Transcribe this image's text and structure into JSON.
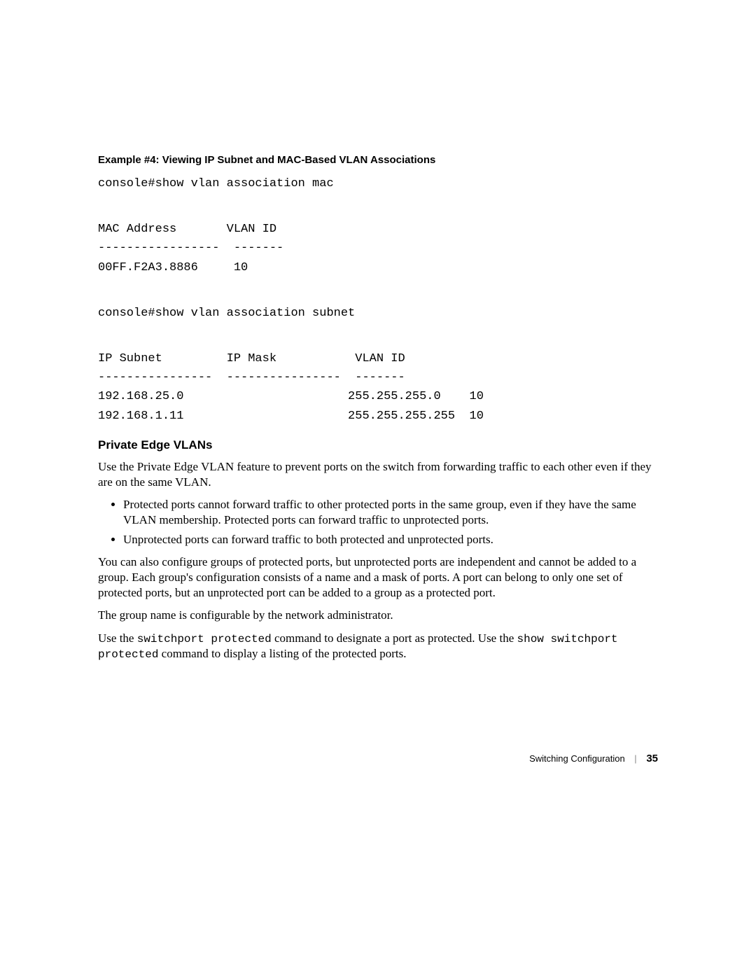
{
  "example": {
    "heading": "Example #4: Viewing IP Subnet and MAC-Based VLAN Associations",
    "cmd1": "console#show vlan association mac",
    "mac_table": {
      "header": "MAC Address       VLAN ID",
      "divider": "-----------------  -------",
      "row1": "00FF.F2A3.8886     10"
    },
    "cmd2": "console#show vlan association subnet",
    "subnet_table": {
      "header": "IP Subnet         IP Mask           VLAN ID",
      "divider": "----------------  ----------------  -------",
      "row1": "192.168.25.0                       255.255.255.0    10",
      "row2": "192.168.1.11                       255.255.255.255  10"
    }
  },
  "section": {
    "heading": "Private Edge VLANs",
    "p1": "Use the Private Edge VLAN feature to prevent ports on the switch from forwarding traffic to each other even if they are on the same VLAN.",
    "bullet1": "Protected ports cannot forward traffic to other protected ports in the same group, even if they have the same VLAN membership. Protected ports can forward traffic to unprotected ports.",
    "bullet2": "Unprotected ports can forward traffic to both protected and unprotected ports.",
    "p2": "You can also configure groups of protected ports, but unprotected ports are independent and cannot be added to a group. Each group's configuration consists of a name and a mask of ports. A port can belong to only one set of protected ports, but an unprotected port can be added to a group as a protected port.",
    "p3": "The group name is configurable by the network administrator.",
    "p4_pre": "Use the ",
    "p4_cmd1": "switchport protected",
    "p4_mid": " command to designate a port as protected. Use the ",
    "p4_cmd2": "show switchport protected",
    "p4_post": " command to display a listing of the protected ports."
  },
  "footer": {
    "section": "Switching Configuration",
    "page": "35"
  }
}
